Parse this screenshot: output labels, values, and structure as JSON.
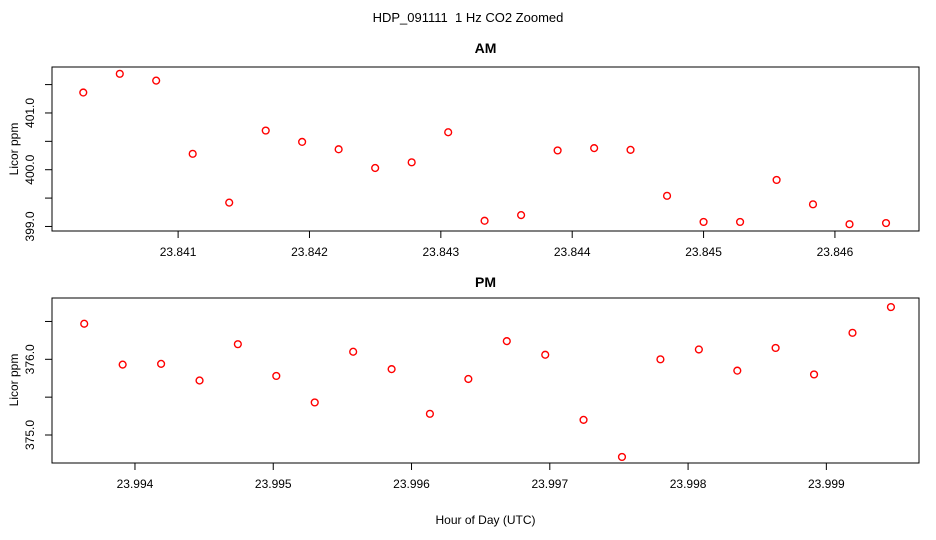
{
  "figure": {
    "title": "HDP_091111  1 Hz CO2 Zoomed",
    "xlabel": "Hour of Day (UTC)",
    "background": "#ffffff",
    "axis_color": "#000000",
    "text_color": "#000000",
    "point_color": "#ff0000"
  },
  "chart_data": [
    {
      "type": "scatter",
      "title": "AM",
      "ylabel": "Licor ppm",
      "marker": "open-circle",
      "grid": false,
      "legend": null,
      "xlim": [
        23.84004,
        23.84664
      ],
      "ylim": [
        398.92,
        401.81
      ],
      "xticks": [
        23.841,
        23.842,
        23.843,
        23.844,
        23.845,
        23.846
      ],
      "xtick_labels": [
        "23.841",
        "23.842",
        "23.843",
        "23.844",
        "23.845",
        "23.846"
      ],
      "yticks": [
        399.0,
        399.5,
        400.0,
        400.5,
        401.0,
        401.5
      ],
      "ytick_labels": [
        "399.0",
        "",
        "400.0",
        "",
        "401.0",
        ""
      ],
      "x": [
        23.840278,
        23.840556,
        23.840833,
        23.841111,
        23.841389,
        23.841667,
        23.841944,
        23.842222,
        23.8425,
        23.842778,
        23.843056,
        23.843333,
        23.843611,
        23.843889,
        23.844167,
        23.844444,
        23.844722,
        23.845,
        23.845278,
        23.845556,
        23.845833,
        23.846111,
        23.846389
      ],
      "y": [
        401.36,
        401.69,
        401.57,
        400.28,
        399.42,
        400.69,
        400.49,
        400.36,
        400.03,
        400.13,
        400.66,
        399.1,
        399.2,
        400.34,
        400.38,
        400.35,
        399.54,
        399.08,
        399.08,
        399.82,
        399.39,
        399.04,
        399.06
      ]
    },
    {
      "type": "scatter",
      "title": "PM",
      "ylabel": "Licor ppm",
      "marker": "open-circle",
      "grid": false,
      "legend": null,
      "xlim": [
        23.9934,
        23.99967
      ],
      "ylim": [
        374.63,
        376.81
      ],
      "xticks": [
        23.994,
        23.995,
        23.996,
        23.997,
        23.998,
        23.999
      ],
      "xtick_labels": [
        "23.994",
        "23.995",
        "23.996",
        "23.997",
        "23.998",
        "23.999"
      ],
      "yticks": [
        375.0,
        375.5,
        376.0,
        376.5
      ],
      "ytick_labels": [
        "375.0",
        "",
        "376.0",
        ""
      ],
      "x": [
        23.993633,
        23.993911,
        23.994189,
        23.994467,
        23.994744,
        23.995022,
        23.9953,
        23.995578,
        23.995856,
        23.996133,
        23.996411,
        23.996689,
        23.996967,
        23.997244,
        23.997522,
        23.9978,
        23.998078,
        23.998356,
        23.998633,
        23.998911,
        23.999189,
        23.999467
      ],
      "y": [
        376.47,
        375.93,
        375.94,
        375.72,
        376.2,
        375.78,
        375.43,
        376.1,
        375.87,
        375.28,
        375.74,
        376.24,
        376.06,
        375.2,
        374.71,
        376.0,
        376.13,
        375.85,
        376.15,
        375.8,
        376.35,
        376.69
      ]
    }
  ]
}
